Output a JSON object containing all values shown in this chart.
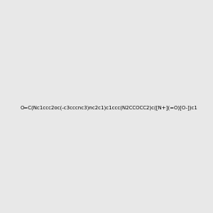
{
  "smiles": "O=C(Nc1ccc2oc(-c3cccnc3)nc2c1)c1ccc(N2CCOCC2)c([N+](=O)[O-])c1",
  "background_color": "#e8e8e8",
  "bg_rgb": [
    0.91,
    0.91,
    0.91
  ],
  "figsize": [
    3.0,
    3.0
  ],
  "dpi": 100,
  "img_size": [
    300,
    300
  ]
}
